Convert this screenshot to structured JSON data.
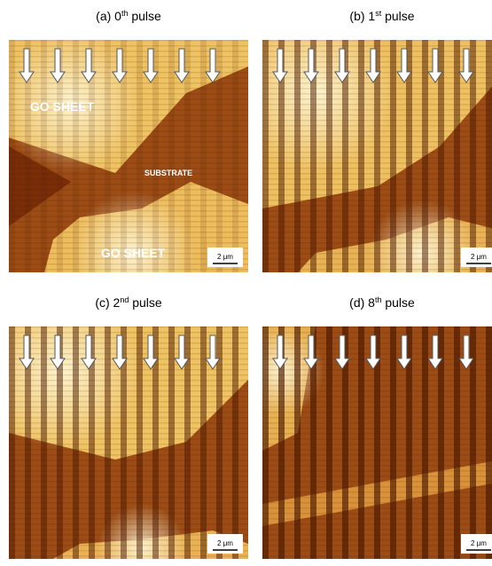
{
  "panels": [
    {
      "label": {
        "prefix": "(a) 0",
        "sup": "th",
        "suffix": " pulse"
      },
      "scale_bar": "2 μm",
      "annotations": [
        "GO SHEET",
        "SUBSTRATE",
        "GO SHEET"
      ]
    },
    {
      "label": {
        "prefix": "(b) 1",
        "sup": "st",
        "suffix": " pulse"
      },
      "scale_bar": "2 μm"
    },
    {
      "label": {
        "prefix": "(c) 2",
        "sup": "nd",
        "suffix": " pulse"
      },
      "scale_bar": "2 μm"
    },
    {
      "label": {
        "prefix": "(d) 8",
        "sup": "th",
        "suffix": " pulse"
      },
      "scale_bar": "2 μm"
    }
  ]
}
